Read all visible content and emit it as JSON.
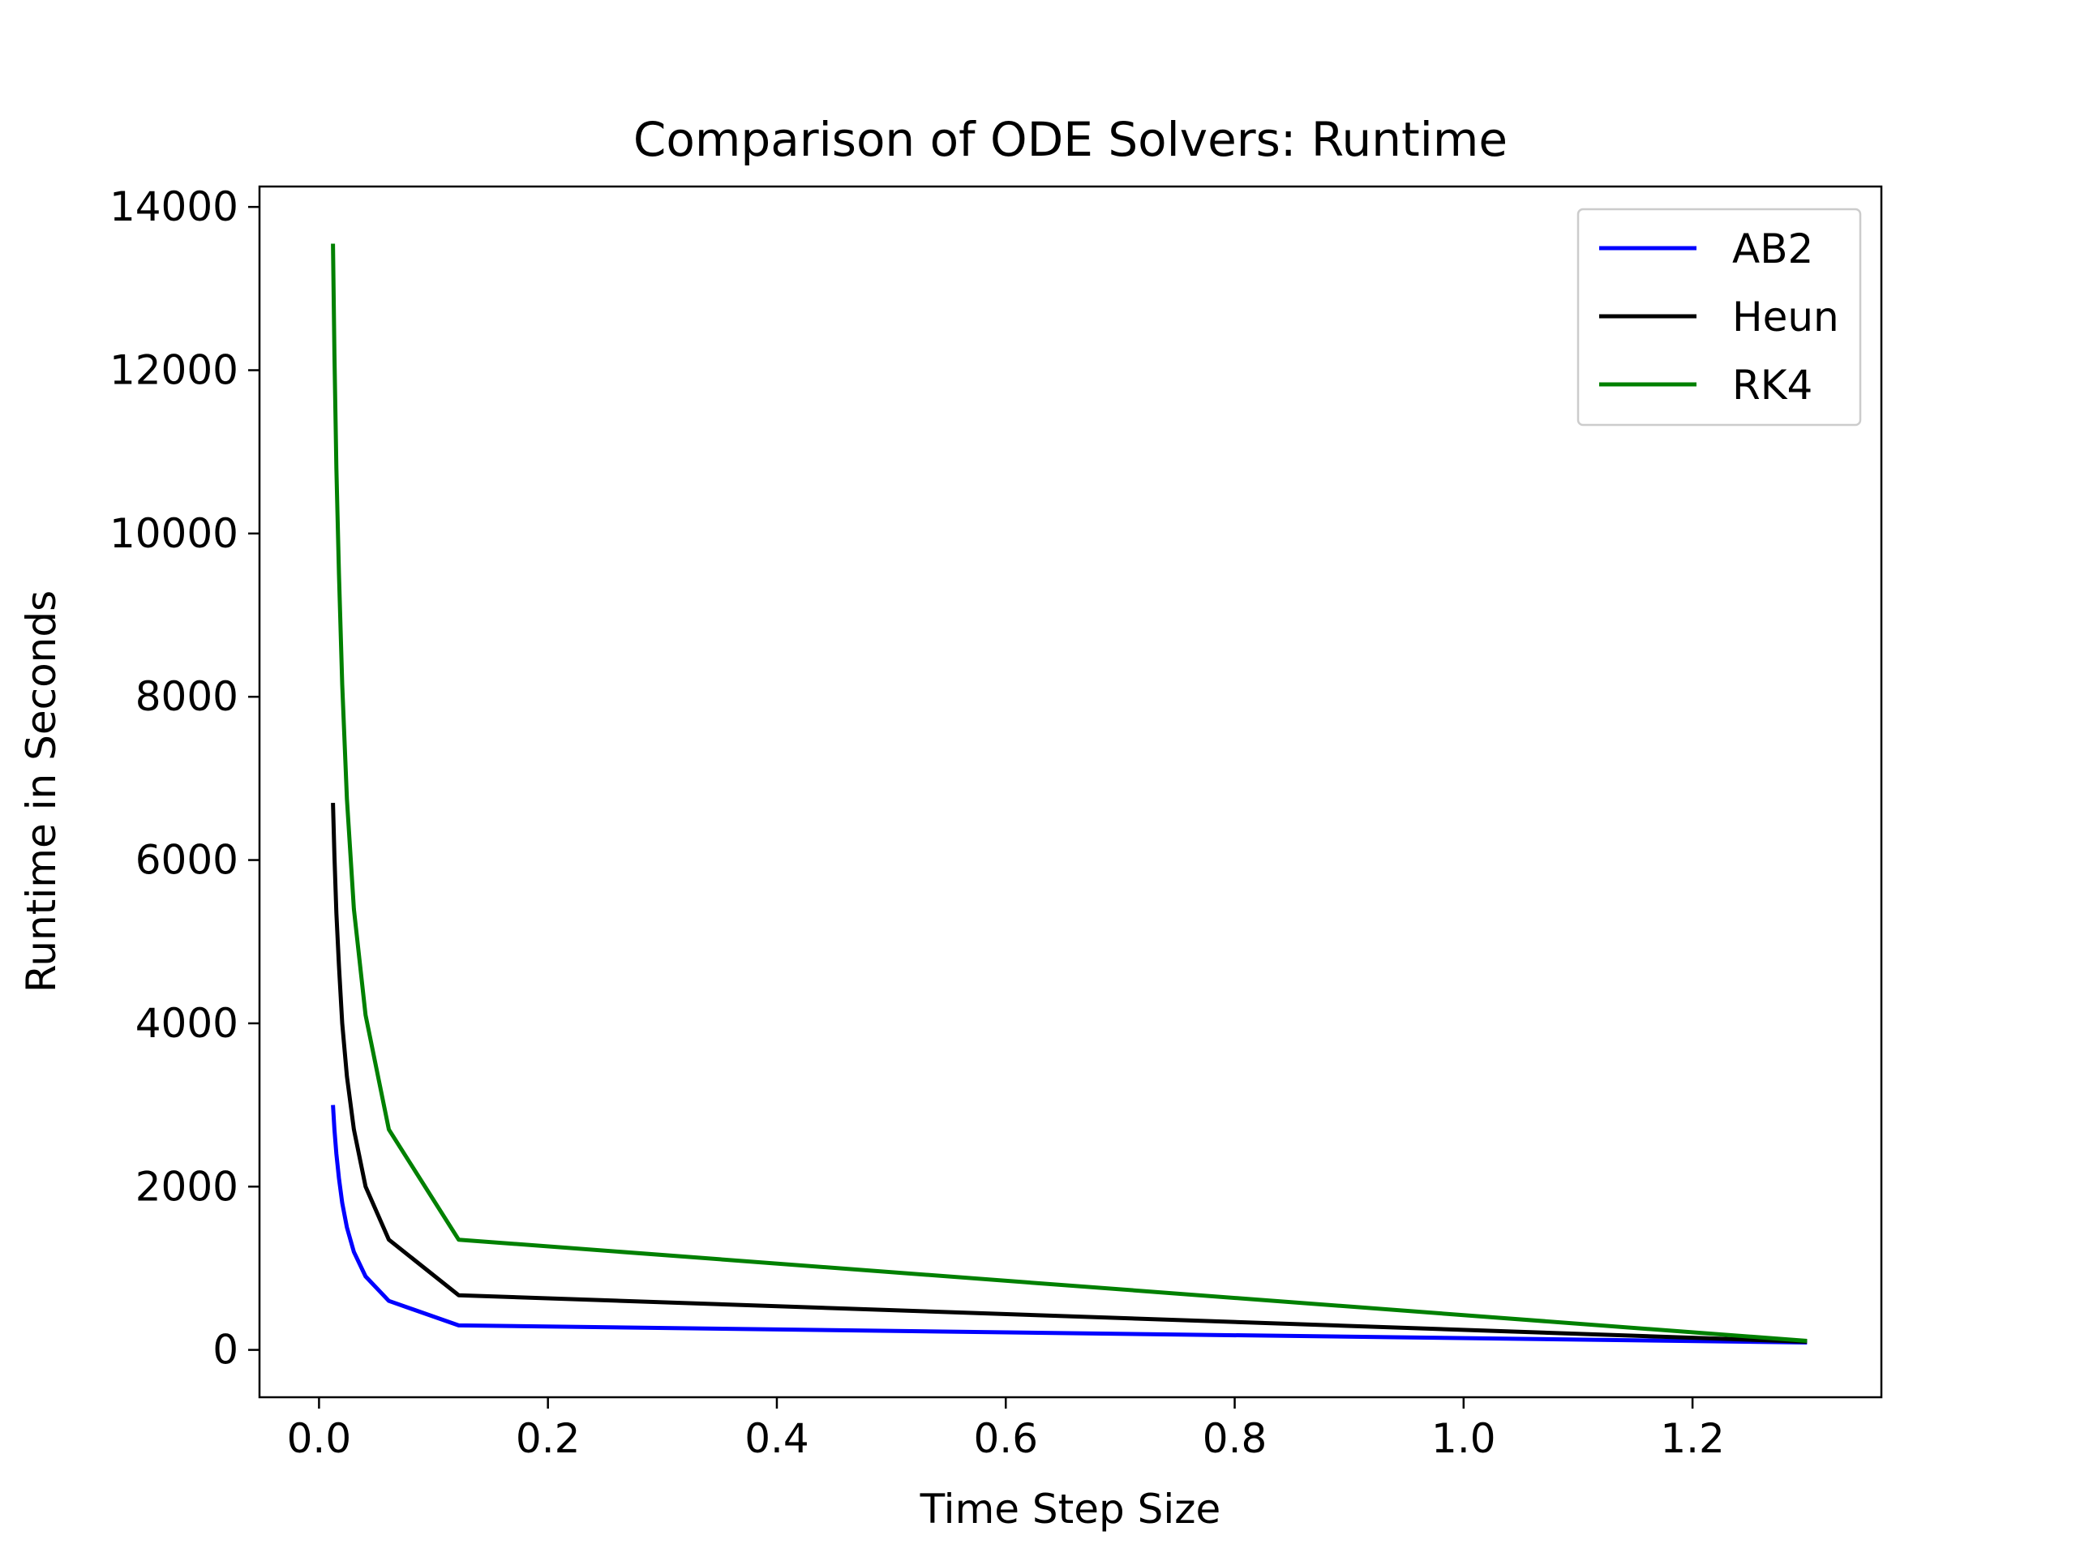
{
  "chart_data": {
    "type": "line",
    "title": "Comparison of ODE Solvers: Runtime",
    "xlabel": "Time Step Size",
    "ylabel": "Runtime in Seconds",
    "xlim": [
      -0.052,
      1.365
    ],
    "ylim": [
      -580,
      14250
    ],
    "xticks": [
      {
        "value": 0.0,
        "label": "0.0"
      },
      {
        "value": 0.2,
        "label": "0.2"
      },
      {
        "value": 0.4,
        "label": "0.4"
      },
      {
        "value": 0.6,
        "label": "0.6"
      },
      {
        "value": 0.8,
        "label": "0.8"
      },
      {
        "value": 1.0,
        "label": "1.0"
      },
      {
        "value": 1.2,
        "label": "1.2"
      }
    ],
    "yticks": [
      {
        "value": 0,
        "label": "0"
      },
      {
        "value": 2000,
        "label": "2000"
      },
      {
        "value": 4000,
        "label": "4000"
      },
      {
        "value": 6000,
        "label": "6000"
      },
      {
        "value": 8000,
        "label": "8000"
      },
      {
        "value": 10000,
        "label": "10000"
      },
      {
        "value": 12000,
        "label": "12000"
      },
      {
        "value": 14000,
        "label": "14000"
      }
    ],
    "grid": false,
    "legend_position": "top-right",
    "series": [
      {
        "name": "AB2",
        "color": "#0000ff",
        "x": [
          0.0122,
          0.0135,
          0.0152,
          0.0174,
          0.0203,
          0.0244,
          0.0305,
          0.0407,
          0.061,
          0.122,
          1.3
        ],
        "y": [
          3000,
          2700,
          2400,
          2100,
          1800,
          1500,
          1200,
          900,
          600,
          300,
          90
        ]
      },
      {
        "name": "Heun",
        "color": "#000000",
        "x": [
          0.0122,
          0.0135,
          0.0152,
          0.0174,
          0.0203,
          0.0244,
          0.0305,
          0.0407,
          0.061,
          0.122,
          1.3
        ],
        "y": [
          6700,
          6050,
          5350,
          4700,
          4000,
          3350,
          2700,
          2000,
          1350,
          670,
          100
        ]
      },
      {
        "name": "RK4",
        "color": "#008000",
        "x": [
          0.0122,
          0.0135,
          0.0152,
          0.0174,
          0.0203,
          0.0244,
          0.0305,
          0.0407,
          0.061,
          0.122,
          1.3
        ],
        "y": [
          13550,
          12200,
          10800,
          9500,
          8150,
          6750,
          5400,
          4100,
          2700,
          1350,
          110
        ]
      }
    ]
  }
}
